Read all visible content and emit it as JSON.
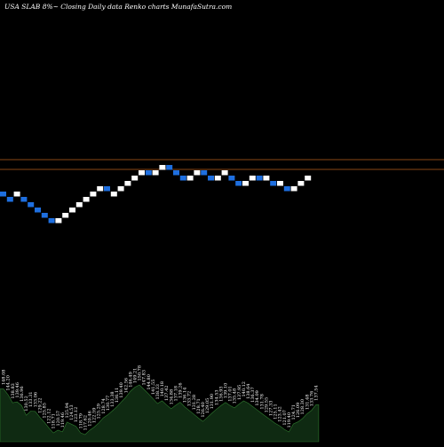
{
  "header": {
    "title": "USA SLAB 8%~  Closing Daily data Renko charts MunafaSutra.com"
  },
  "colors": {
    "background": "#000000",
    "up_brick": "#ffffff",
    "down_brick": "#1e6fe0",
    "reference_line": "#b8621e",
    "volume_fill": "#0f2a12",
    "volume_edge": "#2f7a2f"
  },
  "chart_data": {
    "type": "renko",
    "reference_lines": 2,
    "bricks": [
      {
        "level": 0,
        "dir": "down"
      },
      {
        "level": -1,
        "dir": "down"
      },
      {
        "level": 0,
        "dir": "up"
      },
      {
        "level": -1,
        "dir": "down"
      },
      {
        "level": -2,
        "dir": "down"
      },
      {
        "level": -3,
        "dir": "down"
      },
      {
        "level": -4,
        "dir": "down"
      },
      {
        "level": -5,
        "dir": "down"
      },
      {
        "level": -5,
        "dir": "up"
      },
      {
        "level": -4,
        "dir": "up"
      },
      {
        "level": -3,
        "dir": "up"
      },
      {
        "level": -2,
        "dir": "up"
      },
      {
        "level": -1,
        "dir": "up"
      },
      {
        "level": 0,
        "dir": "up"
      },
      {
        "level": 1,
        "dir": "up"
      },
      {
        "level": 1,
        "dir": "down"
      },
      {
        "level": 0,
        "dir": "up"
      },
      {
        "level": 1,
        "dir": "up"
      },
      {
        "level": 2,
        "dir": "up"
      },
      {
        "level": 3,
        "dir": "up"
      },
      {
        "level": 4,
        "dir": "up"
      },
      {
        "level": 4,
        "dir": "down"
      },
      {
        "level": 4,
        "dir": "up"
      },
      {
        "level": 5,
        "dir": "up"
      },
      {
        "level": 5,
        "dir": "down"
      },
      {
        "level": 4,
        "dir": "down"
      },
      {
        "level": 3,
        "dir": "down"
      },
      {
        "level": 3,
        "dir": "up"
      },
      {
        "level": 4,
        "dir": "up"
      },
      {
        "level": 4,
        "dir": "down"
      },
      {
        "level": 3,
        "dir": "down"
      },
      {
        "level": 3,
        "dir": "up"
      },
      {
        "level": 4,
        "dir": "up"
      },
      {
        "level": 3,
        "dir": "down"
      },
      {
        "level": 2,
        "dir": "down"
      },
      {
        "level": 2,
        "dir": "up"
      },
      {
        "level": 3,
        "dir": "up"
      },
      {
        "level": 3,
        "dir": "down"
      },
      {
        "level": 3,
        "dir": "up"
      },
      {
        "level": 2,
        "dir": "down"
      },
      {
        "level": 2,
        "dir": "up"
      },
      {
        "level": 1,
        "dir": "down"
      },
      {
        "level": 1,
        "dir": "up"
      },
      {
        "level": 2,
        "dir": "up"
      },
      {
        "level": 3,
        "dir": "up"
      }
    ],
    "volume_labels": [
      "148.08",
      "144.20",
      "138.83",
      "139.46",
      "136.96",
      "130.52",
      "133.31",
      "133.06",
      "129.22",
      "125.85",
      "122.12",
      "118.71",
      "120.57",
      "119.46",
      "125.94",
      "124.53",
      "123.12",
      "118.79",
      "117.62",
      "120.46",
      "122.59",
      "125.29",
      "128.74",
      "130.77",
      "133.38",
      "136.11",
      "139.40",
      "142.56",
      "146.49",
      "149.21",
      "150.78",
      "147.83",
      "144.80",
      "141.55",
      "138.33",
      "140.18",
      "137.42",
      "134.88",
      "137.18",
      "139.26",
      "136.14",
      "133.72",
      "131.28",
      "128.71",
      "126.40",
      "129.05",
      "131.90",
      "134.53",
      "136.93",
      "139.10",
      "137.01",
      "135.48",
      "137.95",
      "140.12",
      "138.64",
      "136.37",
      "134.09",
      "131.78",
      "129.55",
      "127.33",
      "125.11",
      "123.42",
      "121.07",
      "119.40",
      "124.71",
      "126.09",
      "128.30",
      "131.48",
      "133.76",
      "137.54"
    ]
  }
}
